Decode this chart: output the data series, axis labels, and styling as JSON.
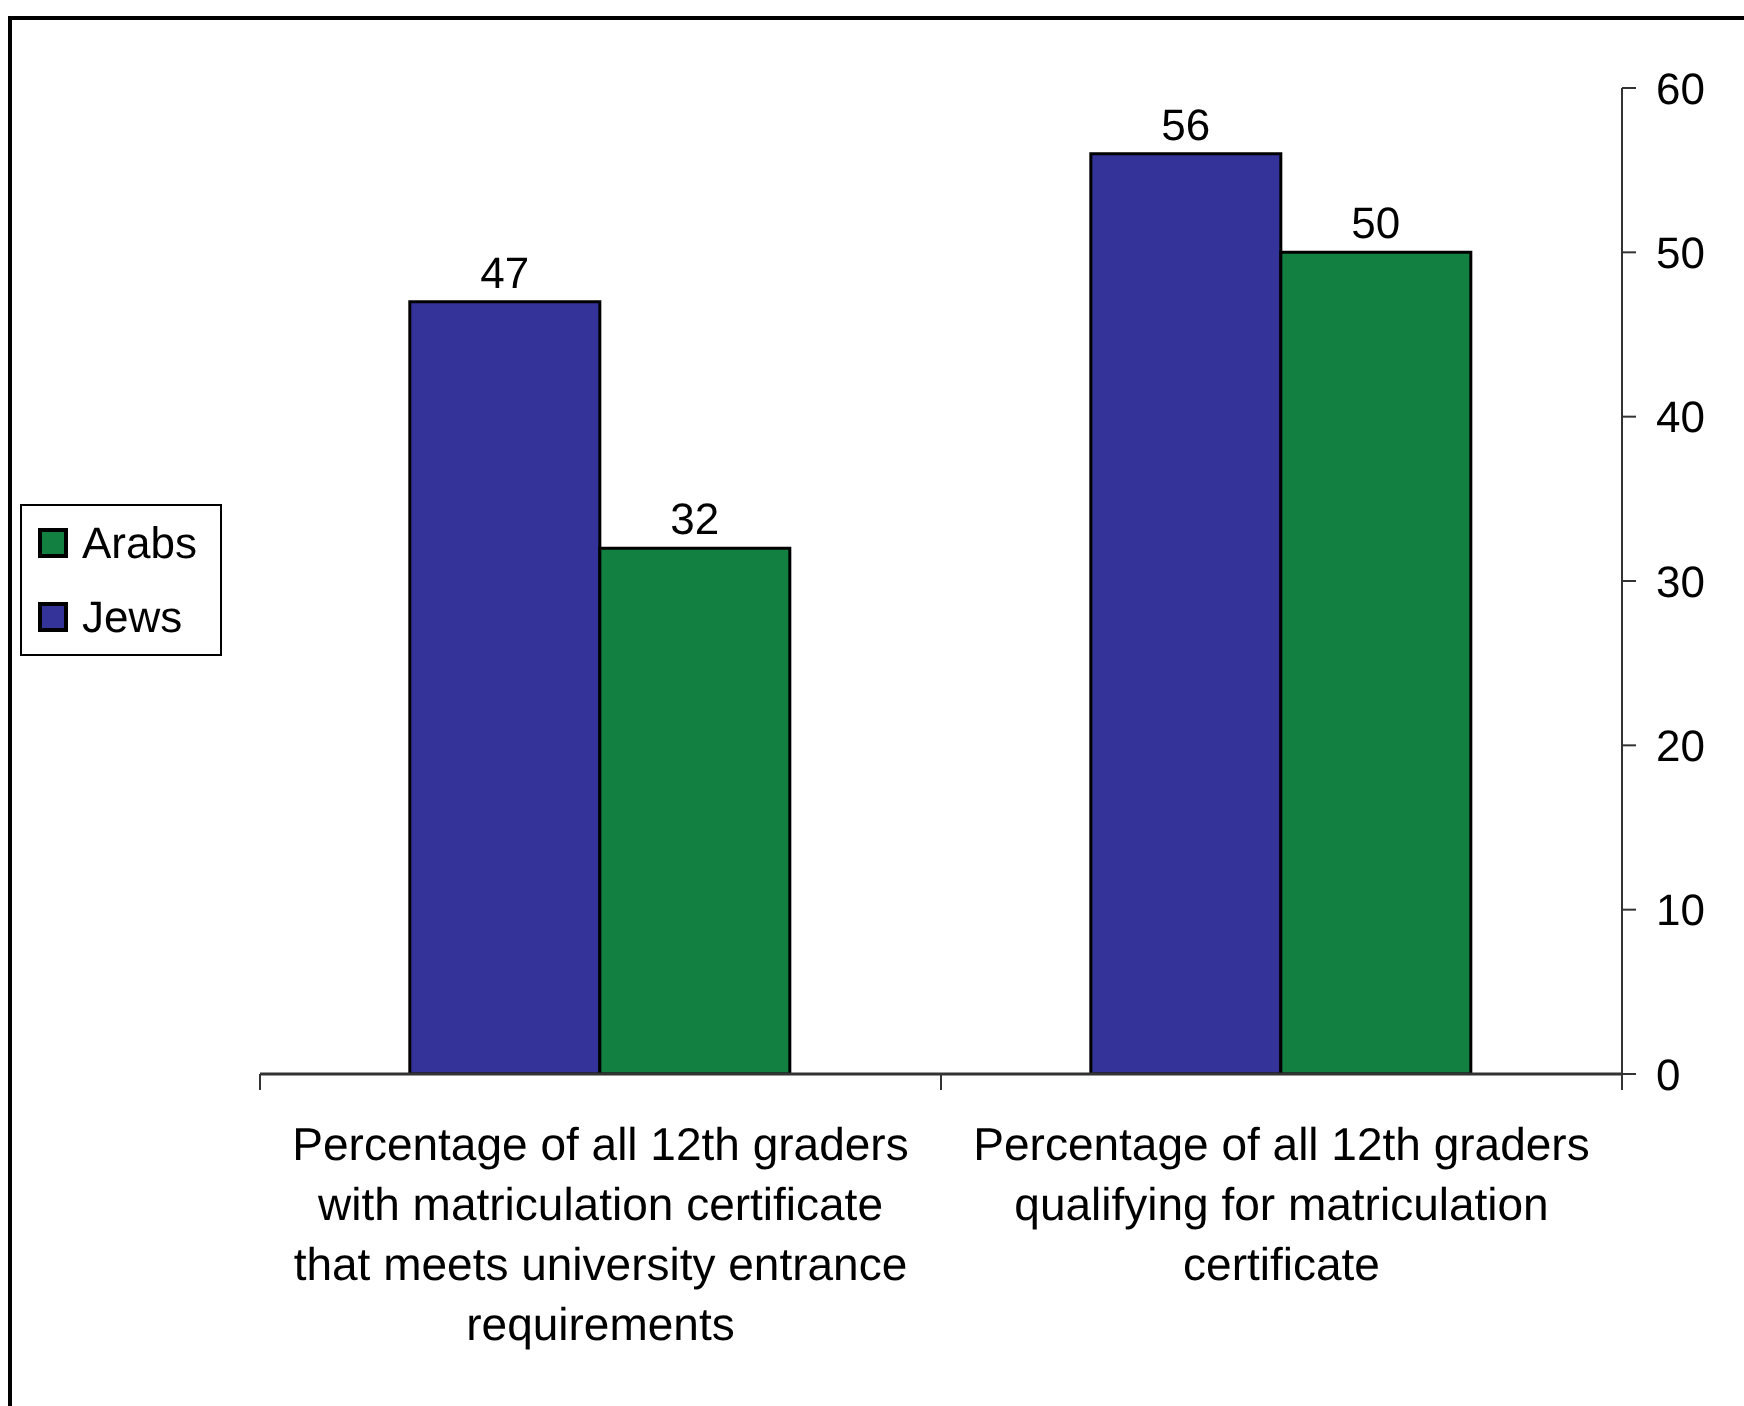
{
  "chart_data": {
    "type": "bar",
    "categories": [
      "Percentage of all 12th graders with matriculation certificate that meets university entrance requirements",
      "Percentage of all 12th graders qualifying for matriculation certificate"
    ],
    "series": [
      {
        "name": "Jews",
        "color": "#333399",
        "values": [
          47,
          56
        ]
      },
      {
        "name": "Arabs",
        "color": "#118040",
        "values": [
          32,
          50
        ]
      }
    ],
    "ylim": [
      0,
      60
    ],
    "yticks": [
      0,
      10,
      20,
      30,
      40,
      50,
      60
    ],
    "data_labels": true,
    "legend": "left"
  }
}
